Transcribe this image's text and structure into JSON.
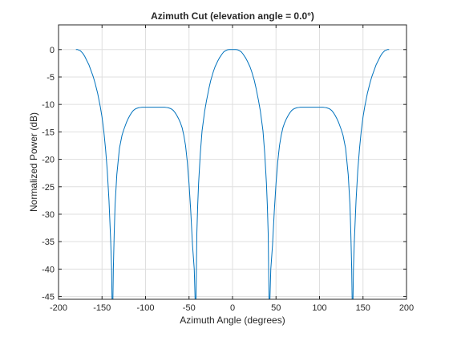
{
  "chart_data": {
    "type": "line",
    "title": "Azimuth Cut (elevation angle = 0.0°)",
    "xlabel": "Azimuth Angle (degrees)",
    "ylabel": "Normalized Power (dB)",
    "xlim": [
      -200,
      200
    ],
    "ylim": [
      -45.5,
      4.5
    ],
    "xticks": [
      -200,
      -150,
      -100,
      -50,
      0,
      50,
      100,
      150,
      200
    ],
    "yticks": [
      0,
      -5,
      -10,
      -15,
      -20,
      -25,
      -30,
      -35,
      -40,
      -45
    ],
    "grid": true,
    "legend": "none",
    "series": [
      {
        "color": "#0072bd",
        "x": [
          -180,
          -178,
          -175,
          -172,
          -170,
          -165,
          -160,
          -158,
          -155,
          -152,
          -150,
          -148,
          -146,
          -144,
          -142,
          -140,
          -139,
          -138.5,
          -138,
          -137.5,
          -137,
          -136,
          -135,
          -133,
          -130,
          -127,
          -125,
          -122,
          -120,
          -118,
          -116,
          -114,
          -112,
          -110,
          -108,
          -106,
          -104,
          -102,
          -100,
          -98,
          -96,
          -94,
          -92,
          -90,
          -88,
          -86,
          -84,
          -82,
          -80,
          -78,
          -76,
          -74,
          -72,
          -70,
          -68,
          -66,
          -64,
          -62,
          -60,
          -58,
          -56,
          -54,
          -52,
          -50,
          -48,
          -46,
          -44,
          -43,
          -42.5,
          -42,
          -41.5,
          -41,
          -40,
          -39,
          -37,
          -35,
          -32,
          -30,
          -27,
          -25,
          -22,
          -20,
          -17,
          -15,
          -12,
          -10,
          -8,
          -6,
          -4,
          -2,
          0,
          2,
          4,
          6,
          8,
          10,
          12,
          15,
          17,
          20,
          22,
          25,
          27,
          30,
          32,
          35,
          37,
          39,
          40,
          41,
          41.5,
          42,
          42.5,
          43,
          44,
          46,
          48,
          50,
          52,
          54,
          56,
          58,
          60,
          62,
          64,
          66,
          68,
          70,
          72,
          74,
          76,
          78,
          80,
          82,
          84,
          86,
          88,
          90,
          92,
          94,
          96,
          98,
          100,
          102,
          104,
          106,
          108,
          110,
          112,
          114,
          116,
          118,
          120,
          122,
          125,
          127,
          130,
          133,
          135,
          136,
          137,
          137.5,
          138,
          138.5,
          139,
          140,
          142,
          144,
          146,
          148,
          150,
          152,
          155,
          158,
          160,
          165,
          170,
          172,
          175,
          178,
          180
        ],
        "y": [
          0,
          0,
          -0.2,
          -0.7,
          -1.2,
          -2.8,
          -5.0,
          -6.1,
          -8.0,
          -10.4,
          -12.3,
          -14.8,
          -18.0,
          -22.0,
          -27.5,
          -35.0,
          -40.0,
          -45.5,
          -45.5,
          -45.5,
          -40.0,
          -33.5,
          -28.3,
          -22.8,
          -18.0,
          -15.6,
          -14.6,
          -13.3,
          -12.6,
          -12.0,
          -11.5,
          -11.1,
          -10.85,
          -10.7,
          -10.6,
          -10.55,
          -10.5,
          -10.5,
          -10.5,
          -10.5,
          -10.5,
          -10.5,
          -10.5,
          -10.5,
          -10.5,
          -10.5,
          -10.5,
          -10.5,
          -10.5,
          -10.5,
          -10.55,
          -10.6,
          -10.7,
          -10.85,
          -11.1,
          -11.5,
          -12.0,
          -12.6,
          -13.3,
          -14.2,
          -15.6,
          -17.5,
          -20.4,
          -24.4,
          -29.5,
          -35.6,
          -40.0,
          -45.5,
          -45.5,
          -45.5,
          -40.0,
          -33.5,
          -28.3,
          -24.4,
          -18.9,
          -14.8,
          -11.2,
          -9.4,
          -7.0,
          -5.6,
          -4.0,
          -3.1,
          -2.1,
          -1.5,
          -0.8,
          -0.4,
          -0.2,
          -0.05,
          0,
          0,
          0,
          0,
          0,
          -0.05,
          -0.2,
          -0.4,
          -0.8,
          -1.5,
          -2.1,
          -3.1,
          -4.0,
          -5.6,
          -7.0,
          -9.4,
          -11.2,
          -14.8,
          -18.9,
          -24.4,
          -28.3,
          -33.5,
          -40.0,
          -45.5,
          -45.5,
          -45.5,
          -40.0,
          -35.6,
          -29.5,
          -24.4,
          -20.4,
          -17.5,
          -15.6,
          -14.2,
          -13.3,
          -12.6,
          -12.0,
          -11.5,
          -11.1,
          -10.85,
          -10.7,
          -10.6,
          -10.55,
          -10.5,
          -10.5,
          -10.5,
          -10.5,
          -10.5,
          -10.5,
          -10.5,
          -10.5,
          -10.5,
          -10.5,
          -10.5,
          -10.5,
          -10.5,
          -10.5,
          -10.55,
          -10.6,
          -10.7,
          -10.85,
          -11.1,
          -11.5,
          -12.0,
          -12.6,
          -13.3,
          -14.6,
          -15.6,
          -18.0,
          -22.8,
          -28.3,
          -33.5,
          -40.0,
          -45.5,
          -45.5,
          -45.5,
          -40.0,
          -35.0,
          -27.5,
          -22.0,
          -18.0,
          -14.8,
          -12.3,
          -10.4,
          -8.0,
          -6.1,
          -5.0,
          -2.8,
          -1.2,
          -0.7,
          -0.2,
          0,
          0
        ]
      }
    ]
  }
}
